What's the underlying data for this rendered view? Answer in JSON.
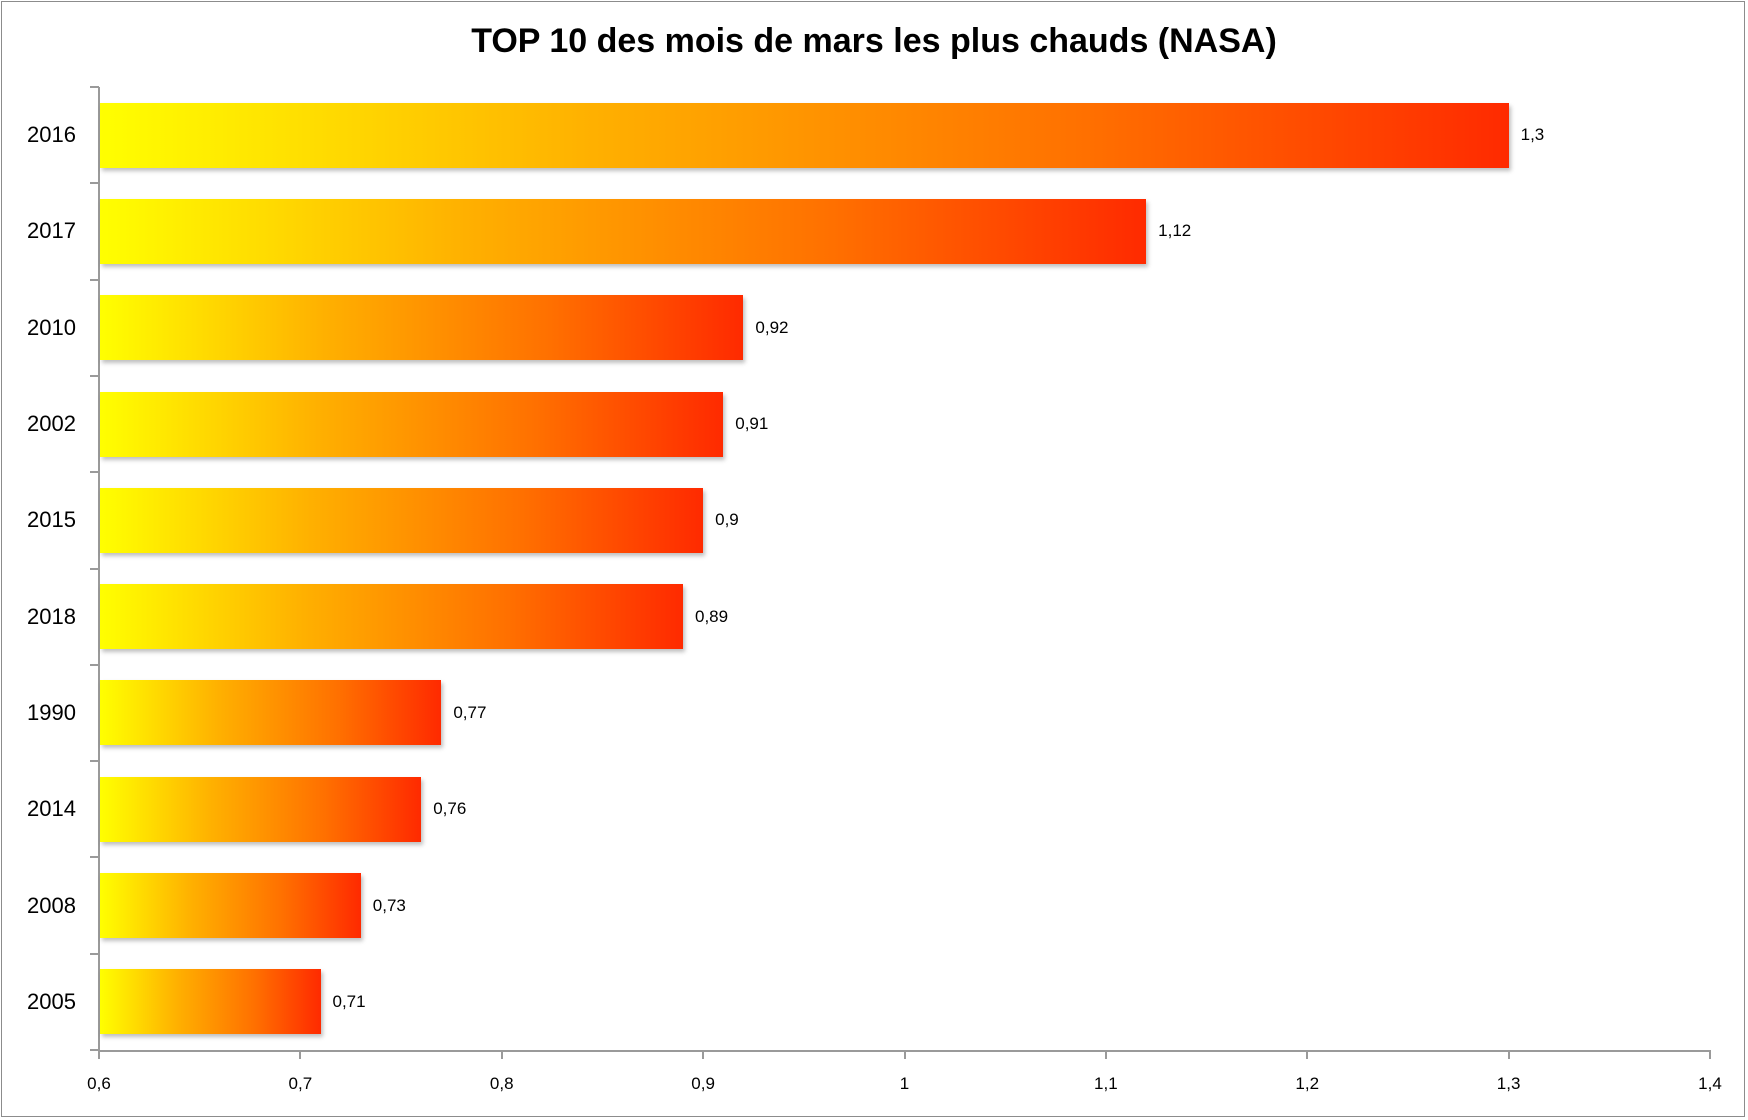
{
  "chart_data": {
    "type": "bar",
    "orientation": "horizontal",
    "title": "TOP 10 des mois de mars les plus chauds (NASA)",
    "xlabel": "",
    "ylabel": "",
    "categories": [
      "2016",
      "2017",
      "2010",
      "2002",
      "2015",
      "2018",
      "1990",
      "2014",
      "2008",
      "2005"
    ],
    "values": [
      1.3,
      1.12,
      0.92,
      0.91,
      0.9,
      0.89,
      0.77,
      0.76,
      0.73,
      0.71
    ],
    "value_labels": [
      "1,3",
      "1,12",
      "0,92",
      "0,91",
      "0,9",
      "0,89",
      "0,77",
      "0,76",
      "0,73",
      "0,71"
    ],
    "xlim": [
      0.6,
      1.4
    ],
    "x_ticks": [
      "0,6",
      "0,7",
      "0,8",
      "0,9",
      "1",
      "1,1",
      "1,2",
      "1,3",
      "1,4"
    ],
    "grid": false,
    "legend": null,
    "bar_gradient": [
      "#ffff00",
      "#ffb000",
      "#ff7000",
      "#ff2a00"
    ]
  }
}
